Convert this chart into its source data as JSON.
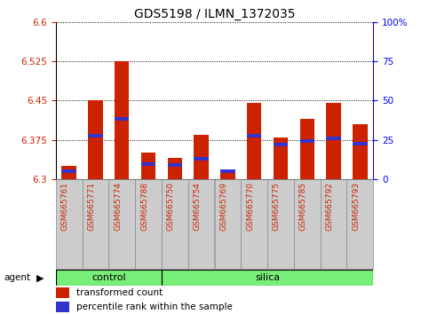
{
  "title": "GDS5198 / ILMN_1372035",
  "samples": [
    "GSM665761",
    "GSM665771",
    "GSM665774",
    "GSM665788",
    "GSM665750",
    "GSM665754",
    "GSM665769",
    "GSM665770",
    "GSM665775",
    "GSM665785",
    "GSM665792",
    "GSM665793"
  ],
  "groups": [
    "control",
    "control",
    "control",
    "control",
    "silica",
    "silica",
    "silica",
    "silica",
    "silica",
    "silica",
    "silica",
    "silica"
  ],
  "transformed_count": [
    6.325,
    6.45,
    6.525,
    6.35,
    6.34,
    6.385,
    6.318,
    6.445,
    6.38,
    6.415,
    6.445,
    6.405
  ],
  "percentile_rank": [
    6.315,
    6.383,
    6.415,
    6.328,
    6.327,
    6.338,
    6.315,
    6.382,
    6.365,
    6.373,
    6.378,
    6.368
  ],
  "y_min": 6.3,
  "y_max": 6.6,
  "y_ticks": [
    6.3,
    6.375,
    6.45,
    6.525,
    6.6
  ],
  "y_tick_labels": [
    "6.3",
    "6.375",
    "6.45",
    "6.525",
    "6.6"
  ],
  "y2_ticks_pct": [
    0,
    25,
    50,
    75,
    100
  ],
  "y2_tick_labels": [
    "0",
    "25",
    "50",
    "75",
    "100%"
  ],
  "bar_color": "#cc2200",
  "blue_color": "#3333cc",
  "control_color": "#77ee77",
  "silica_color": "#77ee77",
  "label_bg_color": "#cccccc",
  "control_label": "control",
  "silica_label": "silica",
  "legend_red": "transformed count",
  "legend_blue": "percentile rank within the sample",
  "agent_label": "agent",
  "bar_width": 0.55,
  "n_control": 4,
  "n_silica": 8
}
